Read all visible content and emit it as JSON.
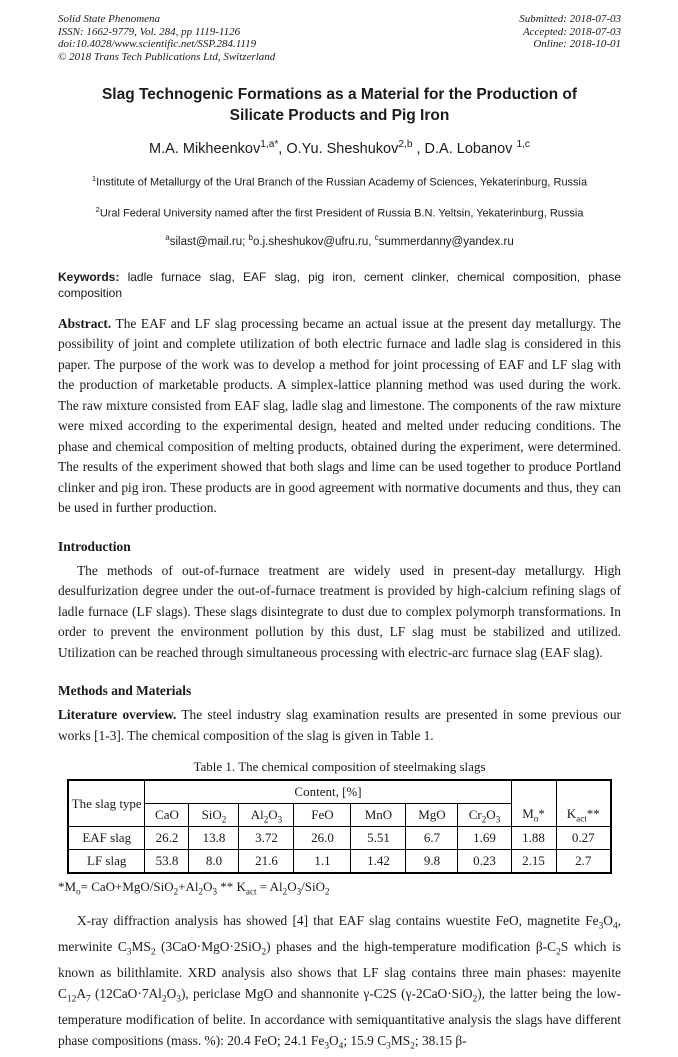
{
  "page": {
    "header": {
      "left": [
        "Solid State Phenomena",
        "ISSN: 1662-9779, Vol. 284, pp 1119-1126",
        "doi:10.4028/www.scientific.net/SSP.284.1119",
        "© 2018 Trans Tech Publications Ltd, Switzerland"
      ],
      "right": [
        "Submitted: 2018-07-03",
        "Accepted: 2018-07-03",
        "Online: 2018-10-01"
      ]
    },
    "title": "Slag Technogenic Formations as a Material for the Production of Silicate Products and Pig Iron",
    "authors_html": "M.A. Mikheenkov<sup>1,a*</sup>, O.Yu. Sheshukov<sup>2,b</sup> , D.A. Lobanov <sup>1,c</sup>",
    "affiliation1_html": "<sup>1</sup>Institute of Metallurgy of the Ural Branch of the Russian Academy of Sciences, Yekaterinburg, Russia",
    "affiliation2_html": "<sup>2</sup>Ural Federal University named after the first President of Russia B.N. Yeltsin, Yekaterinburg, Russia",
    "emails_html": "<sup>a</sup>silast@mail.ru; <sup>b</sup>o.j.sheshukov@ufru.ru, <sup>c</sup>summerdanny@yandex.ru",
    "keywords_html": "<b>Keywords:</b> ladle furnace slag, EAF slag, pig iron, cement clinker, chemical composition, phase composition",
    "abstract_html": "<b>Abstract.</b> The EAF and LF slag processing became an actual issue at the present day metallurgy. The possibility of joint and complete utilization of both electric furnace and ladle slag is considered in this paper.  The purpose of the work was to develop a method for joint processing of EAF and LF slag with the production of marketable products. A simplex-lattice planning method was used during the work. The raw mixture consisted from EAF slag, ladle slag and limestone. The components of the raw mixture were mixed according to the experimental design, heated and melted under reducing conditions. The phase and chemical composition of melting products, obtained during the experiment, were determined. The results of the experiment showed that both slags and lime can be used together to produce Portland clinker and pig iron. These products are in good agreement with normative documents and thus, they can be used in further production.",
    "introduction_heading": "Introduction",
    "introduction_html": "The methods of out-of-furnace treatment are widely used in present-day metallurgy. High desulfurization degree under the out-of-furnace treatment is provided by high-calcium refining slags of ladle furnace (LF slags). These slags disintegrate to dust due to complex polymorph transformations.  In order to prevent the environment pollution by this dust, LF slag must be stabilized and utilized. Utilization can be reached through simultaneous processing with electric-arc furnace slag (EAF slag).",
    "methods_heading": "Methods and Materials",
    "literature_html": "<b>Literature overview.</b> The steel industry slag examination results are presented in some previous our works [1-3]. The chemical composition of the slag is given in Table 1.",
    "table": {
      "caption": "Table 1. The chemical composition of steelmaking slags",
      "col1_header": "The slag type",
      "group_header": "Content, [%]",
      "oxide_headers": [
        "CaO",
        "SiO<sub>2</sub>",
        "Al<sub>2</sub>O<sub>3</sub>",
        "FeO",
        "MnO",
        "MgO",
        "Cr<sub>2</sub>O<sub>3</sub>"
      ],
      "mo_header": "M<sub>o</sub>*",
      "kact_header": "K<sub>act</sub>**",
      "rows": [
        {
          "type": "EAF slag",
          "values": [
            "26.2",
            "13.8",
            "3.72",
            "26.0",
            "5.51",
            "6.7",
            "1.69",
            "1.88",
            "0.27"
          ]
        },
        {
          "type": "LF slag",
          "values": [
            "53.8",
            "8.0",
            "21.6",
            "1.1",
            "1.42",
            "9.8",
            "0.23",
            "2.15",
            "2.7"
          ]
        }
      ],
      "footnote_html": "*M<sub>o</sub>= CaO+MgO/SiO<sub>2</sub>+Al<sub>2</sub>O<sub>3</sub> ** K<sub>act</sub> = Al<sub>2</sub>O<sub>3</sub>/SiO<sub>2</sub>",
      "chart_data": {
        "type": "table",
        "title": "Table 1. The chemical composition of steelmaking slags",
        "columns": [
          "The slag type",
          "CaO",
          "SiO2",
          "Al2O3",
          "FeO",
          "MnO",
          "MgO",
          "Cr2O3",
          "Mo*",
          "Kact**"
        ],
        "rows": [
          [
            "EAF slag",
            26.2,
            13.8,
            3.72,
            26.0,
            5.51,
            6.7,
            1.69,
            1.88,
            0.27
          ],
          [
            "LF slag",
            53.8,
            8.0,
            21.6,
            1.1,
            1.42,
            9.8,
            0.23,
            2.15,
            2.7
          ]
        ]
      }
    },
    "xrd_html": "X-ray diffraction analysis has showed [4] that EAF slag contains wuestite FeO, magnetite Fe<sub>3</sub>O<sub>4</sub>, merwinite C<sub>3</sub>MS<sub>2</sub> (3CaO·MgO·2SiO<sub>2</sub>) phases and the high-temperature modification β-C<sub>2</sub>S which is known as bilithlamite. XRD analysis also shows that LF slag contains three main phases: mayenite C<sub>12</sub>A<sub>7</sub> (12CaO·7Al<sub>2</sub>O<sub>3</sub>), periclase MgO and shannonite γ-C2S (γ-2CaO·SiO<sub>2</sub>), the latter being the low-temperature modification of belite. In accordance with semiquantitative analysis the slags have different phase compositions (mass. %): 20.4 FeO; 24.1 Fe<sub>3</sub>O<sub>4</sub>; 15.9 C<sub>3</sub>MS<sub>2</sub>; 38.15 β-"
  }
}
